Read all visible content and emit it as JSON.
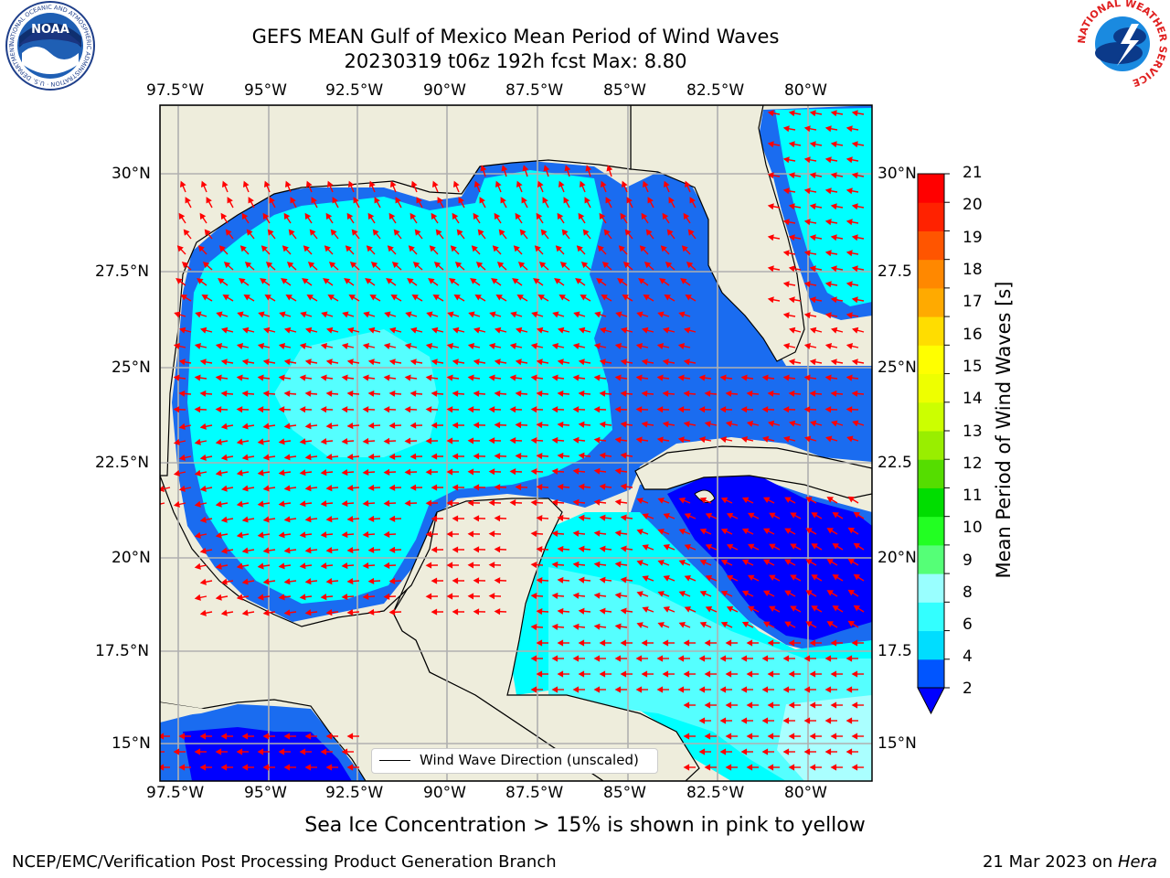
{
  "header": {
    "title_line1": "GEFS MEAN Gulf of Mexico Mean Period of Wind Waves",
    "title_line2": "20230319 t06z 192h fcst   Max: 8.80"
  },
  "logos": {
    "noaa": {
      "text": "NOAA",
      "ring_text": "NATIONAL OCEANIC AND ATMOSPHERIC ADMINISTRATION · U.S. DEPARTMENT OF COMMERCE"
    },
    "nws": {
      "ring_text": "NATIONAL WEATHER SERVICE"
    }
  },
  "map": {
    "lon_labels": [
      "97.5°W",
      "95°W",
      "92.5°W",
      "90°W",
      "87.5°W",
      "85°W",
      "82.5°W",
      "80°W"
    ],
    "lat_labels_left": [
      "30°N",
      "27.5°N",
      "25°N",
      "22.5°N",
      "20°N",
      "17.5°N",
      "15°N"
    ],
    "lat_labels_right": [
      "30°N",
      "27.5",
      "25°N",
      "22.5",
      "20°N",
      "17.5",
      "15°N"
    ],
    "legend_label": "Wind Wave Direction (unscaled)",
    "colors": {
      "land": "#eeeddc",
      "period_2_4": "#1a6cf0",
      "period_4_6": "#00ffff",
      "period_6_8": "#55ffff",
      "period_8_9": "#aaffff",
      "lowest": "#0000ff",
      "arrow": "#ff0000",
      "grid": "#b0b0b0"
    }
  },
  "colorbar": {
    "label": "Mean Period of Wind Waves [s]",
    "ticks": [
      "2",
      "4",
      "6",
      "8",
      "9",
      "10",
      "11",
      "12",
      "13",
      "14",
      "15",
      "16",
      "17",
      "18",
      "19",
      "20",
      "21"
    ],
    "colors": [
      "#0055ff",
      "#00ddff",
      "#33ffff",
      "#99ffff",
      "#55ff77",
      "#22ff22",
      "#00dd00",
      "#55dd00",
      "#99ee00",
      "#ccff00",
      "#eeff00",
      "#ffff00",
      "#ffdd00",
      "#ffaa00",
      "#ff8800",
      "#ff5500",
      "#ff2200",
      "#ff0000"
    ],
    "extend_color": "#0000ff"
  },
  "footer": {
    "caption": "Sea Ice Concentration > 15% is shown in pink to yellow",
    "credit_left": "NCEP/EMC/Verification Post Processing Product Generation Branch",
    "credit_date": "21 Mar 2023 on ",
    "credit_host": "Hera"
  }
}
